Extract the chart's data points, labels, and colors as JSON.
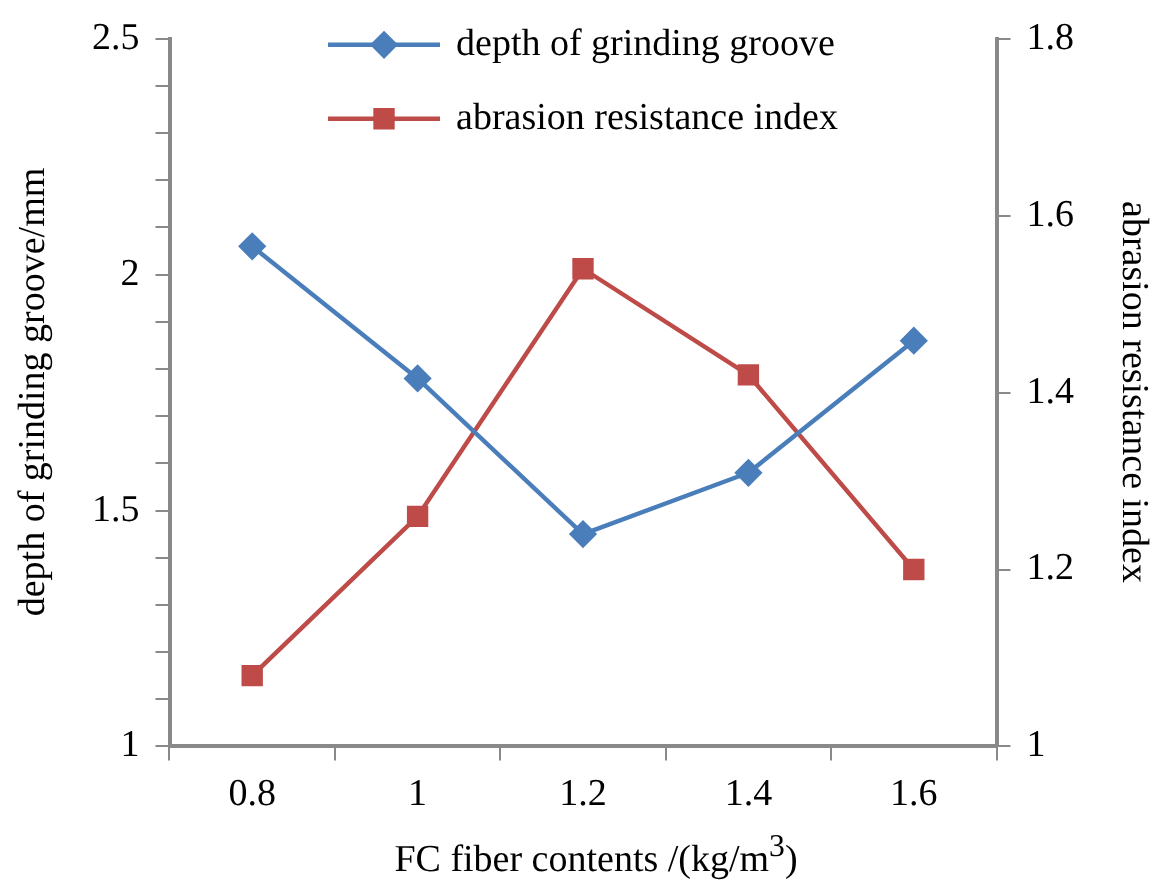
{
  "chart_data": {
    "type": "line",
    "xlabel": "FC fiber contents /(kg/m$^{3}$)",
    "ylabel": "depth of grinding groove/mm",
    "y2label": "abrasion resistance index",
    "categories": [
      "0.8",
      "1",
      "1.2",
      "1.4",
      "1.6"
    ],
    "series": [
      {
        "name": "depth of grinding groove",
        "color": "#4a7ebb",
        "marker": "diamond",
        "values": [
          2.06,
          1.78,
          1.45,
          1.58,
          1.86
        ]
      },
      {
        "name": "abrasion resistance index",
        "color": "#be4b48",
        "marker": "square",
        "axis": "y2",
        "values": [
          1.08,
          1.26,
          1.54,
          1.42,
          1.2
        ]
      }
    ],
    "ylim": [
      1,
      2.5
    ],
    "yticks": [
      1,
      {
        "value": 1.1,
        "label": null
      },
      {
        "value": 1.2,
        "label": null
      },
      {
        "value": 1.3,
        "label": null
      },
      {
        "value": 1.4,
        "label": null
      },
      1.5,
      {
        "value": 1.6,
        "label": null
      },
      {
        "value": 1.7,
        "label": null
      },
      {
        "value": 1.8,
        "label": null
      },
      {
        "value": 1.9,
        "label": null
      },
      2,
      {
        "value": 2.1,
        "label": null
      },
      {
        "value": 2.2,
        "label": null
      },
      {
        "value": 2.3,
        "label": null
      },
      {
        "value": 2.4,
        "label": null
      },
      2.5
    ],
    "y2lim": [
      1,
      1.8
    ],
    "y2ticks": [
      1,
      1.2,
      1.4,
      1.6,
      1.8
    ],
    "grid": false,
    "legend": "top",
    "line_style": "solid"
  }
}
